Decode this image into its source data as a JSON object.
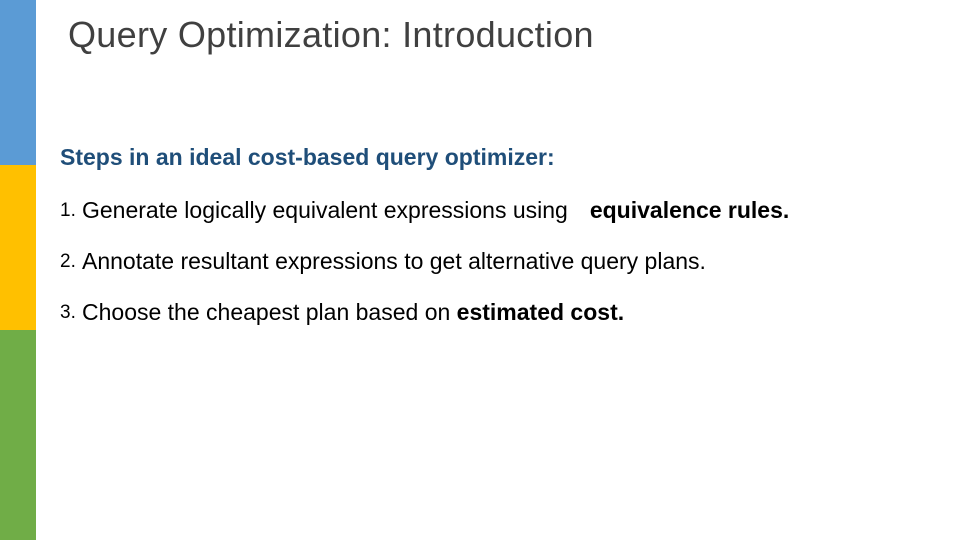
{
  "stripes": {
    "blue": "#5b9bd5",
    "yellow": "#ffc000",
    "green": "#70ad47"
  },
  "title": "Query Optimization: Introduction",
  "subheading": "Steps in an ideal cost-based query optimizer:",
  "items": [
    {
      "num": "1.",
      "pre": "Generate logically equivalent expressions using",
      "bold": "equivalence rules."
    },
    {
      "num": "2.",
      "pre": "Annotate resultant expressions to get alternative query plans."
    },
    {
      "num": "3.",
      "pre": "Choose the cheapest plan based on ",
      "bold_inline": "estimated cost."
    }
  ],
  "text_colors": {
    "title": "#404040",
    "subheading": "#1f4e79",
    "body": "#000000"
  },
  "font_sizes": {
    "title": 36,
    "subheading": 23,
    "body": 23,
    "number": 19
  }
}
